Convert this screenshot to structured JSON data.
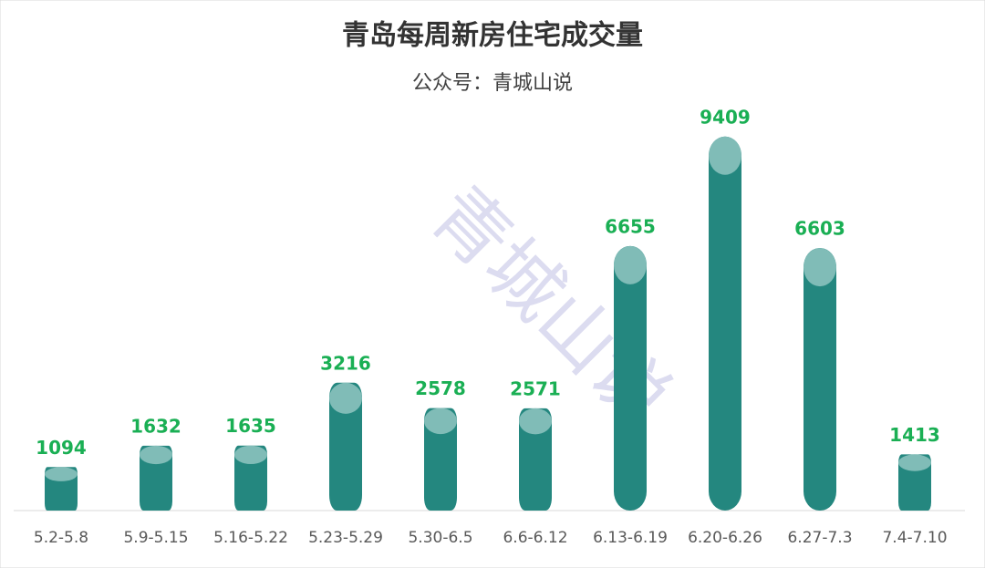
{
  "chart_data": {
    "type": "bar",
    "title": "青岛每周新房住宅成交量",
    "subtitle": "公众号：青城山说",
    "watermark": "青城山说",
    "categories": [
      "5.2-5.8",
      "5.9-5.15",
      "5.16-5.22",
      "5.23-5.29",
      "5.30-6.5",
      "6.6-6.12",
      "6.13-6.19",
      "6.20-6.26",
      "6.27-7.3",
      "7.4-7.10"
    ],
    "values": [
      1094,
      1632,
      1635,
      3216,
      2578,
      2571,
      6655,
      9409,
      6603,
      1413
    ],
    "color": "#24877f",
    "cap_color": "#80bcb7",
    "label_color": "#1aaf54",
    "ylim": [
      0,
      10000
    ]
  }
}
